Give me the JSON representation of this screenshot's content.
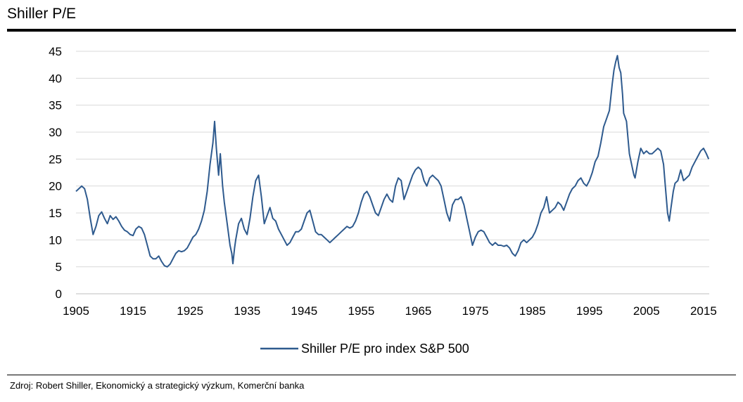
{
  "header": {
    "title": "Shiller P/E"
  },
  "footer": {
    "source": "Zdroj: Robert Shiller, Ekonomický a strategický výzkum, Komerční banka"
  },
  "chart_data": {
    "type": "line",
    "title": "Shiller P/E",
    "xlabel": "",
    "ylabel": "",
    "xlim": [
      1905,
      2016
    ],
    "ylim": [
      0,
      45
    ],
    "x_ticks": [
      1905,
      1915,
      1925,
      1935,
      1945,
      1955,
      1965,
      1975,
      1985,
      1995,
      2005,
      2015
    ],
    "y_ticks": [
      0,
      5,
      10,
      15,
      20,
      25,
      30,
      35,
      40,
      45
    ],
    "grid": "horizontal",
    "legend": "bottom-center",
    "colors": {
      "series": "#2e5a8e",
      "grid": "#d9d9d9"
    },
    "series": [
      {
        "name": "Shiller P/E pro index S&P 500",
        "points": [
          [
            1905,
            19.0
          ],
          [
            1905.5,
            19.5
          ],
          [
            1906,
            20.0
          ],
          [
            1906.5,
            19.5
          ],
          [
            1907,
            17.5
          ],
          [
            1907.5,
            14.0
          ],
          [
            1908,
            11.0
          ],
          [
            1908.5,
            12.5
          ],
          [
            1909,
            14.5
          ],
          [
            1909.5,
            15.2
          ],
          [
            1910,
            14.0
          ],
          [
            1910.5,
            13.0
          ],
          [
            1911,
            14.5
          ],
          [
            1911.5,
            13.8
          ],
          [
            1912,
            14.3
          ],
          [
            1912.5,
            13.5
          ],
          [
            1913,
            12.5
          ],
          [
            1913.5,
            11.8
          ],
          [
            1914,
            11.5
          ],
          [
            1914.5,
            11.0
          ],
          [
            1915,
            10.8
          ],
          [
            1915.5,
            12.0
          ],
          [
            1916,
            12.5
          ],
          [
            1916.5,
            12.2
          ],
          [
            1917,
            11.0
          ],
          [
            1917.5,
            9.0
          ],
          [
            1918,
            7.0
          ],
          [
            1918.5,
            6.5
          ],
          [
            1919,
            6.5
          ],
          [
            1919.5,
            7.0
          ],
          [
            1920,
            6.0
          ],
          [
            1920.5,
            5.2
          ],
          [
            1921,
            5.0
          ],
          [
            1921.5,
            5.5
          ],
          [
            1922,
            6.5
          ],
          [
            1922.5,
            7.5
          ],
          [
            1923,
            8.0
          ],
          [
            1923.5,
            7.8
          ],
          [
            1924,
            8.0
          ],
          [
            1924.5,
            8.5
          ],
          [
            1925,
            9.5
          ],
          [
            1925.5,
            10.5
          ],
          [
            1926,
            11.0
          ],
          [
            1926.5,
            12.0
          ],
          [
            1927,
            13.5
          ],
          [
            1927.5,
            15.5
          ],
          [
            1928,
            19.0
          ],
          [
            1928.5,
            24.0
          ],
          [
            1929,
            28.0
          ],
          [
            1929.3,
            32.0
          ],
          [
            1929.6,
            27.0
          ],
          [
            1930,
            22.0
          ],
          [
            1930.3,
            26.0
          ],
          [
            1930.7,
            20.0
          ],
          [
            1931,
            17.0
          ],
          [
            1931.5,
            13.0
          ],
          [
            1932,
            9.0
          ],
          [
            1932.3,
            7.5
          ],
          [
            1932.5,
            5.6
          ],
          [
            1932.8,
            8.5
          ],
          [
            1933,
            10.0
          ],
          [
            1933.5,
            13.0
          ],
          [
            1934,
            14.0
          ],
          [
            1934.5,
            12.0
          ],
          [
            1935,
            11.0
          ],
          [
            1935.5,
            14.0
          ],
          [
            1936,
            18.0
          ],
          [
            1936.5,
            21.0
          ],
          [
            1937,
            22.0
          ],
          [
            1937.5,
            18.0
          ],
          [
            1938,
            13.0
          ],
          [
            1938.5,
            14.5
          ],
          [
            1939,
            16.0
          ],
          [
            1939.5,
            14.0
          ],
          [
            1940,
            13.5
          ],
          [
            1940.5,
            12.0
          ],
          [
            1941,
            11.0
          ],
          [
            1941.5,
            10.0
          ],
          [
            1942,
            9.0
          ],
          [
            1942.5,
            9.5
          ],
          [
            1943,
            10.5
          ],
          [
            1943.5,
            11.5
          ],
          [
            1944,
            11.5
          ],
          [
            1944.5,
            12.0
          ],
          [
            1945,
            13.5
          ],
          [
            1945.5,
            15.0
          ],
          [
            1946,
            15.5
          ],
          [
            1946.5,
            13.5
          ],
          [
            1947,
            11.5
          ],
          [
            1947.5,
            11.0
          ],
          [
            1948,
            11.0
          ],
          [
            1948.5,
            10.5
          ],
          [
            1949,
            10.0
          ],
          [
            1949.5,
            9.5
          ],
          [
            1950,
            10.0
          ],
          [
            1950.5,
            10.5
          ],
          [
            1951,
            11.0
          ],
          [
            1951.5,
            11.5
          ],
          [
            1952,
            12.0
          ],
          [
            1952.5,
            12.5
          ],
          [
            1953,
            12.2
          ],
          [
            1953.5,
            12.5
          ],
          [
            1954,
            13.5
          ],
          [
            1954.5,
            15.0
          ],
          [
            1955,
            17.0
          ],
          [
            1955.5,
            18.5
          ],
          [
            1956,
            19.0
          ],
          [
            1956.5,
            18.0
          ],
          [
            1957,
            16.5
          ],
          [
            1957.5,
            15.0
          ],
          [
            1958,
            14.5
          ],
          [
            1958.5,
            16.0
          ],
          [
            1959,
            17.5
          ],
          [
            1959.5,
            18.5
          ],
          [
            1960,
            17.5
          ],
          [
            1960.5,
            17.0
          ],
          [
            1961,
            20.0
          ],
          [
            1961.5,
            21.5
          ],
          [
            1962,
            21.0
          ],
          [
            1962.5,
            17.5
          ],
          [
            1963,
            19.0
          ],
          [
            1963.5,
            20.5
          ],
          [
            1964,
            22.0
          ],
          [
            1964.5,
            23.0
          ],
          [
            1965,
            23.5
          ],
          [
            1965.5,
            23.0
          ],
          [
            1966,
            21.0
          ],
          [
            1966.5,
            20.0
          ],
          [
            1967,
            21.5
          ],
          [
            1967.5,
            22.0
          ],
          [
            1968,
            21.5
          ],
          [
            1968.5,
            21.0
          ],
          [
            1969,
            20.0
          ],
          [
            1969.5,
            17.5
          ],
          [
            1970,
            15.0
          ],
          [
            1970.5,
            13.5
          ],
          [
            1971,
            16.5
          ],
          [
            1971.5,
            17.5
          ],
          [
            1972,
            17.5
          ],
          [
            1972.5,
            18.0
          ],
          [
            1973,
            16.5
          ],
          [
            1973.5,
            14.0
          ],
          [
            1974,
            11.5
          ],
          [
            1974.5,
            9.0
          ],
          [
            1975,
            10.5
          ],
          [
            1975.5,
            11.5
          ],
          [
            1976,
            11.8
          ],
          [
            1976.5,
            11.5
          ],
          [
            1977,
            10.5
          ],
          [
            1977.5,
            9.5
          ],
          [
            1978,
            9.0
          ],
          [
            1978.5,
            9.5
          ],
          [
            1979,
            9.0
          ],
          [
            1979.5,
            9.0
          ],
          [
            1980,
            8.8
          ],
          [
            1980.5,
            9.0
          ],
          [
            1981,
            8.5
          ],
          [
            1981.5,
            7.5
          ],
          [
            1982,
            7.0
          ],
          [
            1982.5,
            8.0
          ],
          [
            1983,
            9.5
          ],
          [
            1983.5,
            10.0
          ],
          [
            1984,
            9.5
          ],
          [
            1984.5,
            10.0
          ],
          [
            1985,
            10.5
          ],
          [
            1985.5,
            11.5
          ],
          [
            1986,
            13.0
          ],
          [
            1986.5,
            15.0
          ],
          [
            1987,
            16.0
          ],
          [
            1987.5,
            18.0
          ],
          [
            1988,
            15.0
          ],
          [
            1988.5,
            15.5
          ],
          [
            1989,
            16.0
          ],
          [
            1989.5,
            17.0
          ],
          [
            1990,
            16.5
          ],
          [
            1990.5,
            15.5
          ],
          [
            1991,
            17.0
          ],
          [
            1991.5,
            18.5
          ],
          [
            1992,
            19.5
          ],
          [
            1992.5,
            20.0
          ],
          [
            1993,
            21.0
          ],
          [
            1993.5,
            21.5
          ],
          [
            1994,
            20.5
          ],
          [
            1994.5,
            20.0
          ],
          [
            1995,
            21.0
          ],
          [
            1995.5,
            22.5
          ],
          [
            1996,
            24.5
          ],
          [
            1996.5,
            25.5
          ],
          [
            1997,
            28.0
          ],
          [
            1997.5,
            31.0
          ],
          [
            1998,
            32.5
          ],
          [
            1998.5,
            34.0
          ],
          [
            1999,
            39.0
          ],
          [
            1999.3,
            41.5
          ],
          [
            1999.6,
            43.0
          ],
          [
            1999.9,
            44.2
          ],
          [
            2000.2,
            42.0
          ],
          [
            2000.5,
            41.0
          ],
          [
            2000.8,
            37.0
          ],
          [
            2001,
            33.5
          ],
          [
            2001.5,
            32.0
          ],
          [
            2002,
            26.0
          ],
          [
            2002.5,
            23.5
          ],
          [
            2002.8,
            22.0
          ],
          [
            2003,
            21.5
          ],
          [
            2003.5,
            24.5
          ],
          [
            2004,
            27.0
          ],
          [
            2004.5,
            26.0
          ],
          [
            2005,
            26.5
          ],
          [
            2005.5,
            26.0
          ],
          [
            2006,
            26.0
          ],
          [
            2006.5,
            26.5
          ],
          [
            2007,
            27.0
          ],
          [
            2007.5,
            26.5
          ],
          [
            2008,
            24.0
          ],
          [
            2008.3,
            20.0
          ],
          [
            2008.7,
            15.0
          ],
          [
            2009,
            13.5
          ],
          [
            2009.3,
            16.0
          ],
          [
            2009.7,
            19.0
          ],
          [
            2010,
            20.5
          ],
          [
            2010.5,
            21.0
          ],
          [
            2011,
            23.0
          ],
          [
            2011.5,
            21.0
          ],
          [
            2012,
            21.5
          ],
          [
            2012.5,
            22.0
          ],
          [
            2013,
            23.5
          ],
          [
            2013.5,
            24.5
          ],
          [
            2014,
            25.5
          ],
          [
            2014.5,
            26.5
          ],
          [
            2015,
            27.0
          ],
          [
            2015.5,
            26.0
          ],
          [
            2015.9,
            25.0
          ]
        ]
      }
    ]
  }
}
